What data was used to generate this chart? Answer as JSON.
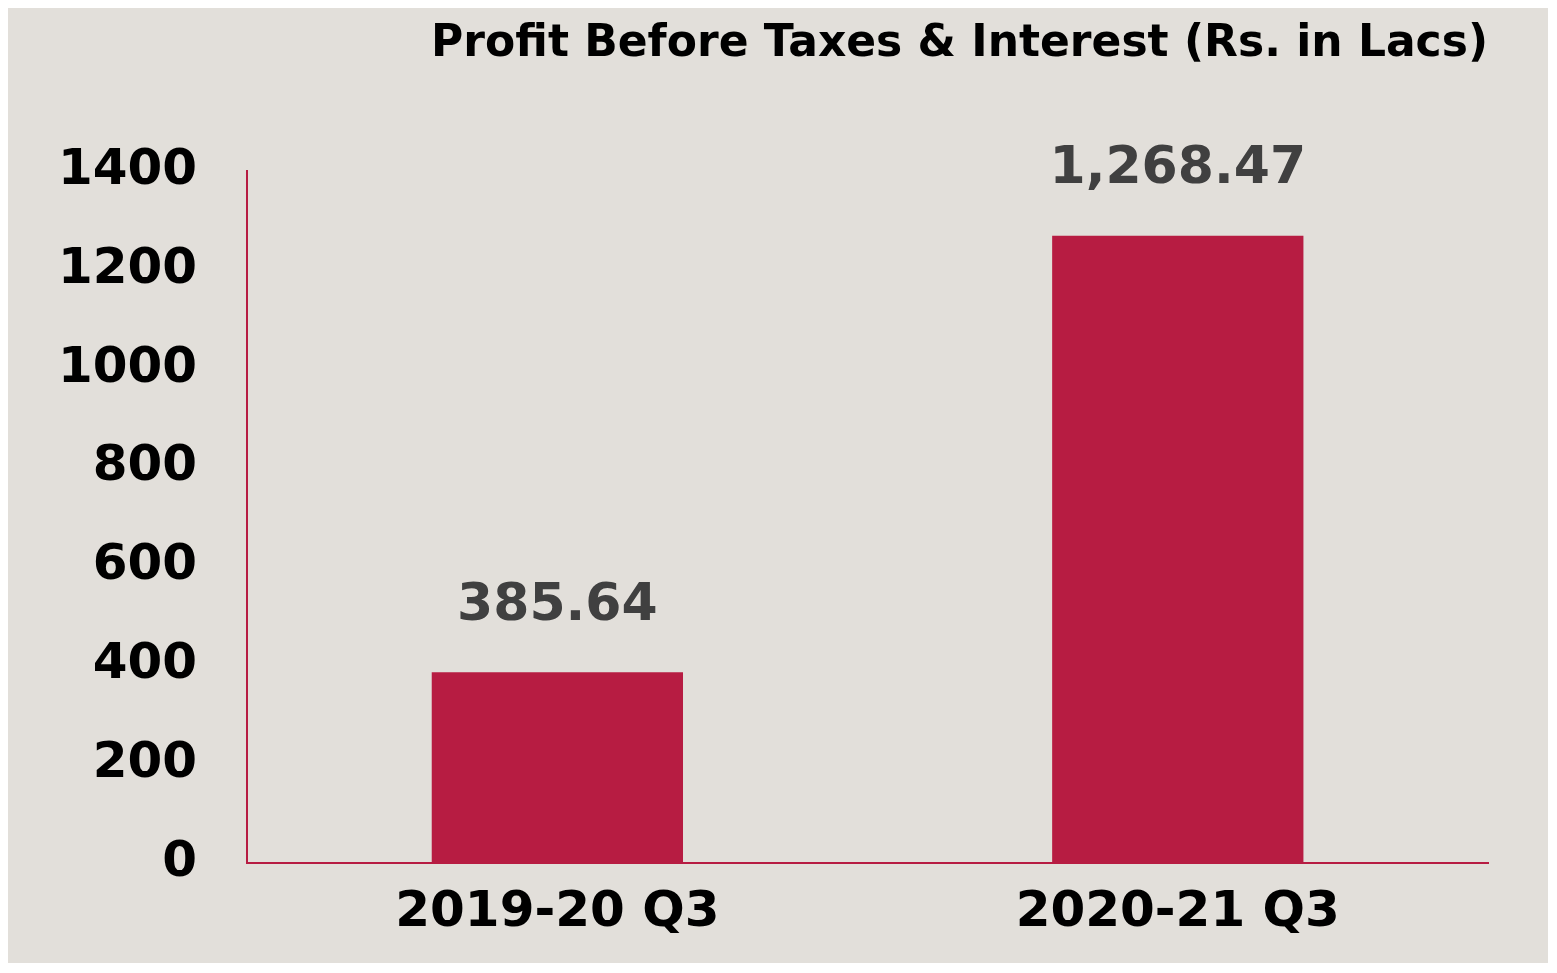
{
  "chart_data": {
    "type": "bar",
    "title": "Profit Before Taxes & Interest (Rs. in Lacs)",
    "categories": [
      "2019-20 Q3",
      "2020-21 Q3"
    ],
    "values": [
      385.64,
      1268.47
    ],
    "value_labels": [
      "385.64",
      "1,268.47"
    ],
    "color": "#b71c42",
    "ylim": [
      0,
      1400
    ],
    "yticks": [
      0,
      200,
      400,
      600,
      800,
      1000,
      1200,
      1400
    ],
    "grid": false,
    "legend": false
  }
}
